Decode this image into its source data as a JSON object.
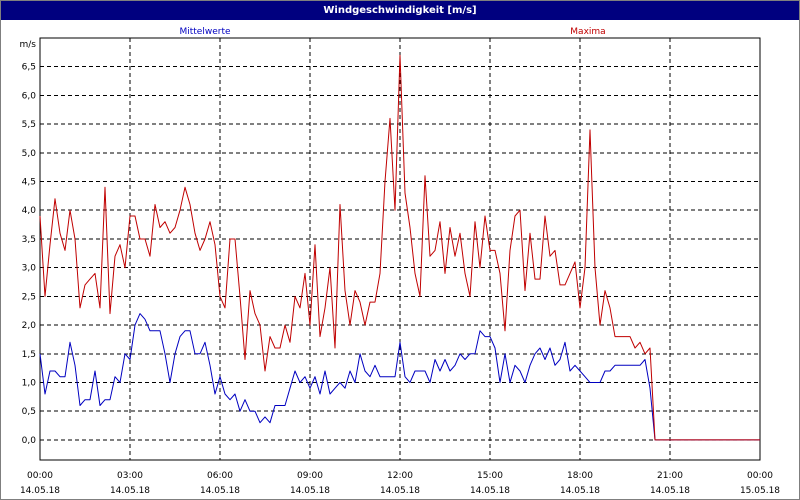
{
  "window": {
    "title": "Windgeschwindigkeit [m/s]"
  },
  "chart_data": {
    "type": "line",
    "title": "Windgeschwindigkeit [m/s]",
    "ylabel": "m/s",
    "ylim": [
      -0.35,
      7.0
    ],
    "yticks": [
      "0.0",
      "0.5",
      "1.0",
      "1.5",
      "2.0",
      "2.5",
      "3.0",
      "3.5",
      "4.0",
      "4.5",
      "5.0",
      "5.5",
      "6.0",
      "6.5"
    ],
    "yticks_display": [
      "0,0",
      "0,5",
      "1,0",
      "1,5",
      "2,0",
      "2,5",
      "3,0",
      "3,5",
      "4,0",
      "4,5",
      "5,0",
      "5,5",
      "6,0",
      "6,5"
    ],
    "xlim": [
      "14.05.18 00:00",
      "15.05.18 00:00"
    ],
    "xticks": [
      {
        "time": "00:00",
        "date": "14.05.18"
      },
      {
        "time": "03:00",
        "date": "14.05.18"
      },
      {
        "time": "06:00",
        "date": "14.05.18"
      },
      {
        "time": "09:00",
        "date": "14.05.18"
      },
      {
        "time": "12:00",
        "date": "14.05.18"
      },
      {
        "time": "15:00",
        "date": "14.05.18"
      },
      {
        "time": "18:00",
        "date": "14.05.18"
      },
      {
        "time": "21:00",
        "date": "14.05.18"
      },
      {
        "time": "00:00",
        "date": "15.05.18"
      }
    ],
    "grid": true,
    "legend_position": "top",
    "series": [
      {
        "name": "Mittelwerte",
        "color": "#0000c0",
        "points": [
          [
            "00:00",
            1.5
          ],
          [
            "00:10",
            0.8
          ],
          [
            "00:20",
            1.2
          ],
          [
            "00:30",
            1.2
          ],
          [
            "00:40",
            1.1
          ],
          [
            "00:50",
            1.1
          ],
          [
            "01:00",
            1.7
          ],
          [
            "01:10",
            1.3
          ],
          [
            "01:20",
            0.6
          ],
          [
            "01:30",
            0.7
          ],
          [
            "01:40",
            0.7
          ],
          [
            "01:50",
            1.2
          ],
          [
            "02:00",
            0.6
          ],
          [
            "02:10",
            0.7
          ],
          [
            "02:20",
            0.7
          ],
          [
            "02:30",
            1.1
          ],
          [
            "02:40",
            1.0
          ],
          [
            "02:50",
            1.5
          ],
          [
            "03:00",
            1.4
          ],
          [
            "03:10",
            2.0
          ],
          [
            "03:20",
            2.2
          ],
          [
            "03:30",
            2.1
          ],
          [
            "03:40",
            1.9
          ],
          [
            "03:50",
            1.9
          ],
          [
            "04:00",
            1.9
          ],
          [
            "04:10",
            1.5
          ],
          [
            "04:20",
            1.0
          ],
          [
            "04:30",
            1.5
          ],
          [
            "04:40",
            1.8
          ],
          [
            "04:50",
            1.9
          ],
          [
            "05:00",
            1.9
          ],
          [
            "05:10",
            1.5
          ],
          [
            "05:20",
            1.5
          ],
          [
            "05:30",
            1.7
          ],
          [
            "05:40",
            1.3
          ],
          [
            "05:50",
            0.8
          ],
          [
            "06:00",
            1.1
          ],
          [
            "06:10",
            0.8
          ],
          [
            "06:20",
            0.7
          ],
          [
            "06:30",
            0.8
          ],
          [
            "06:40",
            0.5
          ],
          [
            "06:50",
            0.7
          ],
          [
            "07:00",
            0.5
          ],
          [
            "07:10",
            0.5
          ],
          [
            "07:20",
            0.3
          ],
          [
            "07:30",
            0.4
          ],
          [
            "07:40",
            0.3
          ],
          [
            "07:50",
            0.6
          ],
          [
            "08:00",
            0.6
          ],
          [
            "08:10",
            0.6
          ],
          [
            "08:20",
            0.9
          ],
          [
            "08:30",
            1.2
          ],
          [
            "08:40",
            1.0
          ],
          [
            "08:50",
            1.1
          ],
          [
            "09:00",
            0.9
          ],
          [
            "09:10",
            1.1
          ],
          [
            "09:20",
            0.8
          ],
          [
            "09:30",
            1.2
          ],
          [
            "09:40",
            0.8
          ],
          [
            "09:50",
            0.9
          ],
          [
            "10:00",
            1.0
          ],
          [
            "10:10",
            0.9
          ],
          [
            "10:20",
            1.2
          ],
          [
            "10:30",
            1.0
          ],
          [
            "10:40",
            1.5
          ],
          [
            "10:50",
            1.2
          ],
          [
            "11:00",
            1.1
          ],
          [
            "11:10",
            1.3
          ],
          [
            "11:20",
            1.1
          ],
          [
            "11:30",
            1.1
          ],
          [
            "11:40",
            1.1
          ],
          [
            "11:50",
            1.1
          ],
          [
            "12:00",
            1.7
          ],
          [
            "12:10",
            1.1
          ],
          [
            "12:20",
            1.0
          ],
          [
            "12:30",
            1.2
          ],
          [
            "12:40",
            1.2
          ],
          [
            "12:50",
            1.2
          ],
          [
            "13:00",
            1.0
          ],
          [
            "13:10",
            1.4
          ],
          [
            "13:20",
            1.2
          ],
          [
            "13:30",
            1.4
          ],
          [
            "13:40",
            1.2
          ],
          [
            "13:50",
            1.3
          ],
          [
            "14:00",
            1.5
          ],
          [
            "14:10",
            1.4
          ],
          [
            "14:20",
            1.5
          ],
          [
            "14:30",
            1.5
          ],
          [
            "14:40",
            1.9
          ],
          [
            "14:50",
            1.8
          ],
          [
            "15:00",
            1.8
          ],
          [
            "15:10",
            1.6
          ],
          [
            "15:20",
            1.0
          ],
          [
            "15:30",
            1.5
          ],
          [
            "15:40",
            1.0
          ],
          [
            "15:50",
            1.3
          ],
          [
            "16:00",
            1.2
          ],
          [
            "16:10",
            1.0
          ],
          [
            "16:20",
            1.3
          ],
          [
            "16:30",
            1.5
          ],
          [
            "16:40",
            1.6
          ],
          [
            "16:50",
            1.4
          ],
          [
            "17:00",
            1.6
          ],
          [
            "17:10",
            1.3
          ],
          [
            "17:20",
            1.4
          ],
          [
            "17:30",
            1.7
          ],
          [
            "17:40",
            1.2
          ],
          [
            "17:50",
            1.3
          ],
          [
            "18:00",
            1.2
          ],
          [
            "18:10",
            1.1
          ],
          [
            "18:20",
            1.0
          ],
          [
            "18:30",
            1.0
          ],
          [
            "18:40",
            1.0
          ],
          [
            "18:50",
            1.2
          ],
          [
            "19:00",
            1.2
          ],
          [
            "19:10",
            1.3
          ],
          [
            "19:20",
            1.3
          ],
          [
            "19:30",
            1.3
          ],
          [
            "19:40",
            1.3
          ],
          [
            "19:50",
            1.3
          ],
          [
            "20:00",
            1.3
          ],
          [
            "20:10",
            1.4
          ],
          [
            "20:20",
            0.9
          ],
          [
            "20:30",
            0.0
          ],
          [
            "20:40",
            0.0
          ],
          [
            "21:00",
            0.0
          ],
          [
            "22:00",
            0.0
          ],
          [
            "23:00",
            0.0
          ],
          [
            "24:00",
            0.0
          ]
        ]
      },
      {
        "name": "Maxima",
        "color": "#c00000",
        "points": [
          [
            "00:00",
            3.9
          ],
          [
            "00:10",
            2.5
          ],
          [
            "00:20",
            3.4
          ],
          [
            "00:30",
            4.2
          ],
          [
            "00:40",
            3.6
          ],
          [
            "00:50",
            3.3
          ],
          [
            "01:00",
            4.0
          ],
          [
            "01:10",
            3.5
          ],
          [
            "01:20",
            2.3
          ],
          [
            "01:30",
            2.7
          ],
          [
            "01:40",
            2.8
          ],
          [
            "01:50",
            2.9
          ],
          [
            "02:00",
            2.3
          ],
          [
            "02:10",
            4.4
          ],
          [
            "02:20",
            2.2
          ],
          [
            "02:30",
            3.2
          ],
          [
            "02:40",
            3.4
          ],
          [
            "02:50",
            3.0
          ],
          [
            "03:00",
            3.9
          ],
          [
            "03:10",
            3.9
          ],
          [
            "03:20",
            3.5
          ],
          [
            "03:30",
            3.5
          ],
          [
            "03:40",
            3.2
          ],
          [
            "03:50",
            4.1
          ],
          [
            "04:00",
            3.7
          ],
          [
            "04:10",
            3.8
          ],
          [
            "04:20",
            3.6
          ],
          [
            "04:30",
            3.7
          ],
          [
            "04:40",
            4.0
          ],
          [
            "04:50",
            4.4
          ],
          [
            "05:00",
            4.1
          ],
          [
            "05:10",
            3.6
          ],
          [
            "05:20",
            3.3
          ],
          [
            "05:30",
            3.5
          ],
          [
            "05:40",
            3.8
          ],
          [
            "05:50",
            3.4
          ],
          [
            "06:00",
            2.5
          ],
          [
            "06:10",
            2.3
          ],
          [
            "06:20",
            3.5
          ],
          [
            "06:30",
            3.5
          ],
          [
            "06:40",
            2.5
          ],
          [
            "06:50",
            1.4
          ],
          [
            "07:00",
            2.6
          ],
          [
            "07:10",
            2.2
          ],
          [
            "07:20",
            2.0
          ],
          [
            "07:30",
            1.2
          ],
          [
            "07:40",
            1.8
          ],
          [
            "07:50",
            1.6
          ],
          [
            "08:00",
            1.6
          ],
          [
            "08:10",
            2.0
          ],
          [
            "08:20",
            1.7
          ],
          [
            "08:30",
            2.5
          ],
          [
            "08:40",
            2.3
          ],
          [
            "08:50",
            2.9
          ],
          [
            "09:00",
            2.0
          ],
          [
            "09:10",
            3.4
          ],
          [
            "09:20",
            1.8
          ],
          [
            "09:30",
            2.3
          ],
          [
            "09:40",
            3.0
          ],
          [
            "09:50",
            1.6
          ],
          [
            "10:00",
            4.1
          ],
          [
            "10:10",
            2.6
          ],
          [
            "10:20",
            2.0
          ],
          [
            "10:30",
            2.6
          ],
          [
            "10:40",
            2.4
          ],
          [
            "10:50",
            2.0
          ],
          [
            "11:00",
            2.4
          ],
          [
            "11:10",
            2.4
          ],
          [
            "11:20",
            2.9
          ],
          [
            "11:30",
            4.5
          ],
          [
            "11:40",
            5.6
          ],
          [
            "11:50",
            4.0
          ],
          [
            "12:00",
            6.7
          ],
          [
            "12:10",
            4.3
          ],
          [
            "12:20",
            3.7
          ],
          [
            "12:30",
            2.9
          ],
          [
            "12:40",
            2.5
          ],
          [
            "12:50",
            4.6
          ],
          [
            "13:00",
            3.2
          ],
          [
            "13:10",
            3.3
          ],
          [
            "13:20",
            3.8
          ],
          [
            "13:30",
            2.9
          ],
          [
            "13:40",
            3.7
          ],
          [
            "13:50",
            3.2
          ],
          [
            "14:00",
            3.6
          ],
          [
            "14:10",
            2.9
          ],
          [
            "14:20",
            2.5
          ],
          [
            "14:30",
            3.8
          ],
          [
            "14:40",
            3.0
          ],
          [
            "14:50",
            3.9
          ],
          [
            "15:00",
            3.3
          ],
          [
            "15:10",
            3.3
          ],
          [
            "15:20",
            2.9
          ],
          [
            "15:30",
            1.9
          ],
          [
            "15:40",
            3.3
          ],
          [
            "15:50",
            3.9
          ],
          [
            "16:00",
            4.0
          ],
          [
            "16:10",
            2.6
          ],
          [
            "16:20",
            3.6
          ],
          [
            "16:30",
            2.8
          ],
          [
            "16:40",
            2.8
          ],
          [
            "16:50",
            3.9
          ],
          [
            "17:00",
            3.2
          ],
          [
            "17:10",
            3.3
          ],
          [
            "17:20",
            2.7
          ],
          [
            "17:30",
            2.7
          ],
          [
            "17:40",
            2.9
          ],
          [
            "17:50",
            3.1
          ],
          [
            "18:00",
            2.3
          ],
          [
            "18:10",
            3.0
          ],
          [
            "18:20",
            5.4
          ],
          [
            "18:30",
            3.0
          ],
          [
            "18:40",
            2.0
          ],
          [
            "18:50",
            2.6
          ],
          [
            "19:00",
            2.3
          ],
          [
            "19:10",
            1.8
          ],
          [
            "19:20",
            1.8
          ],
          [
            "19:30",
            1.8
          ],
          [
            "19:40",
            1.8
          ],
          [
            "19:50",
            1.6
          ],
          [
            "20:00",
            1.7
          ],
          [
            "20:10",
            1.5
          ],
          [
            "20:20",
            1.6
          ],
          [
            "20:30",
            0.0
          ],
          [
            "20:40",
            0.0
          ],
          [
            "21:00",
            0.0
          ],
          [
            "22:00",
            0.0
          ],
          [
            "23:00",
            0.0
          ],
          [
            "24:00",
            0.0
          ]
        ]
      }
    ]
  }
}
